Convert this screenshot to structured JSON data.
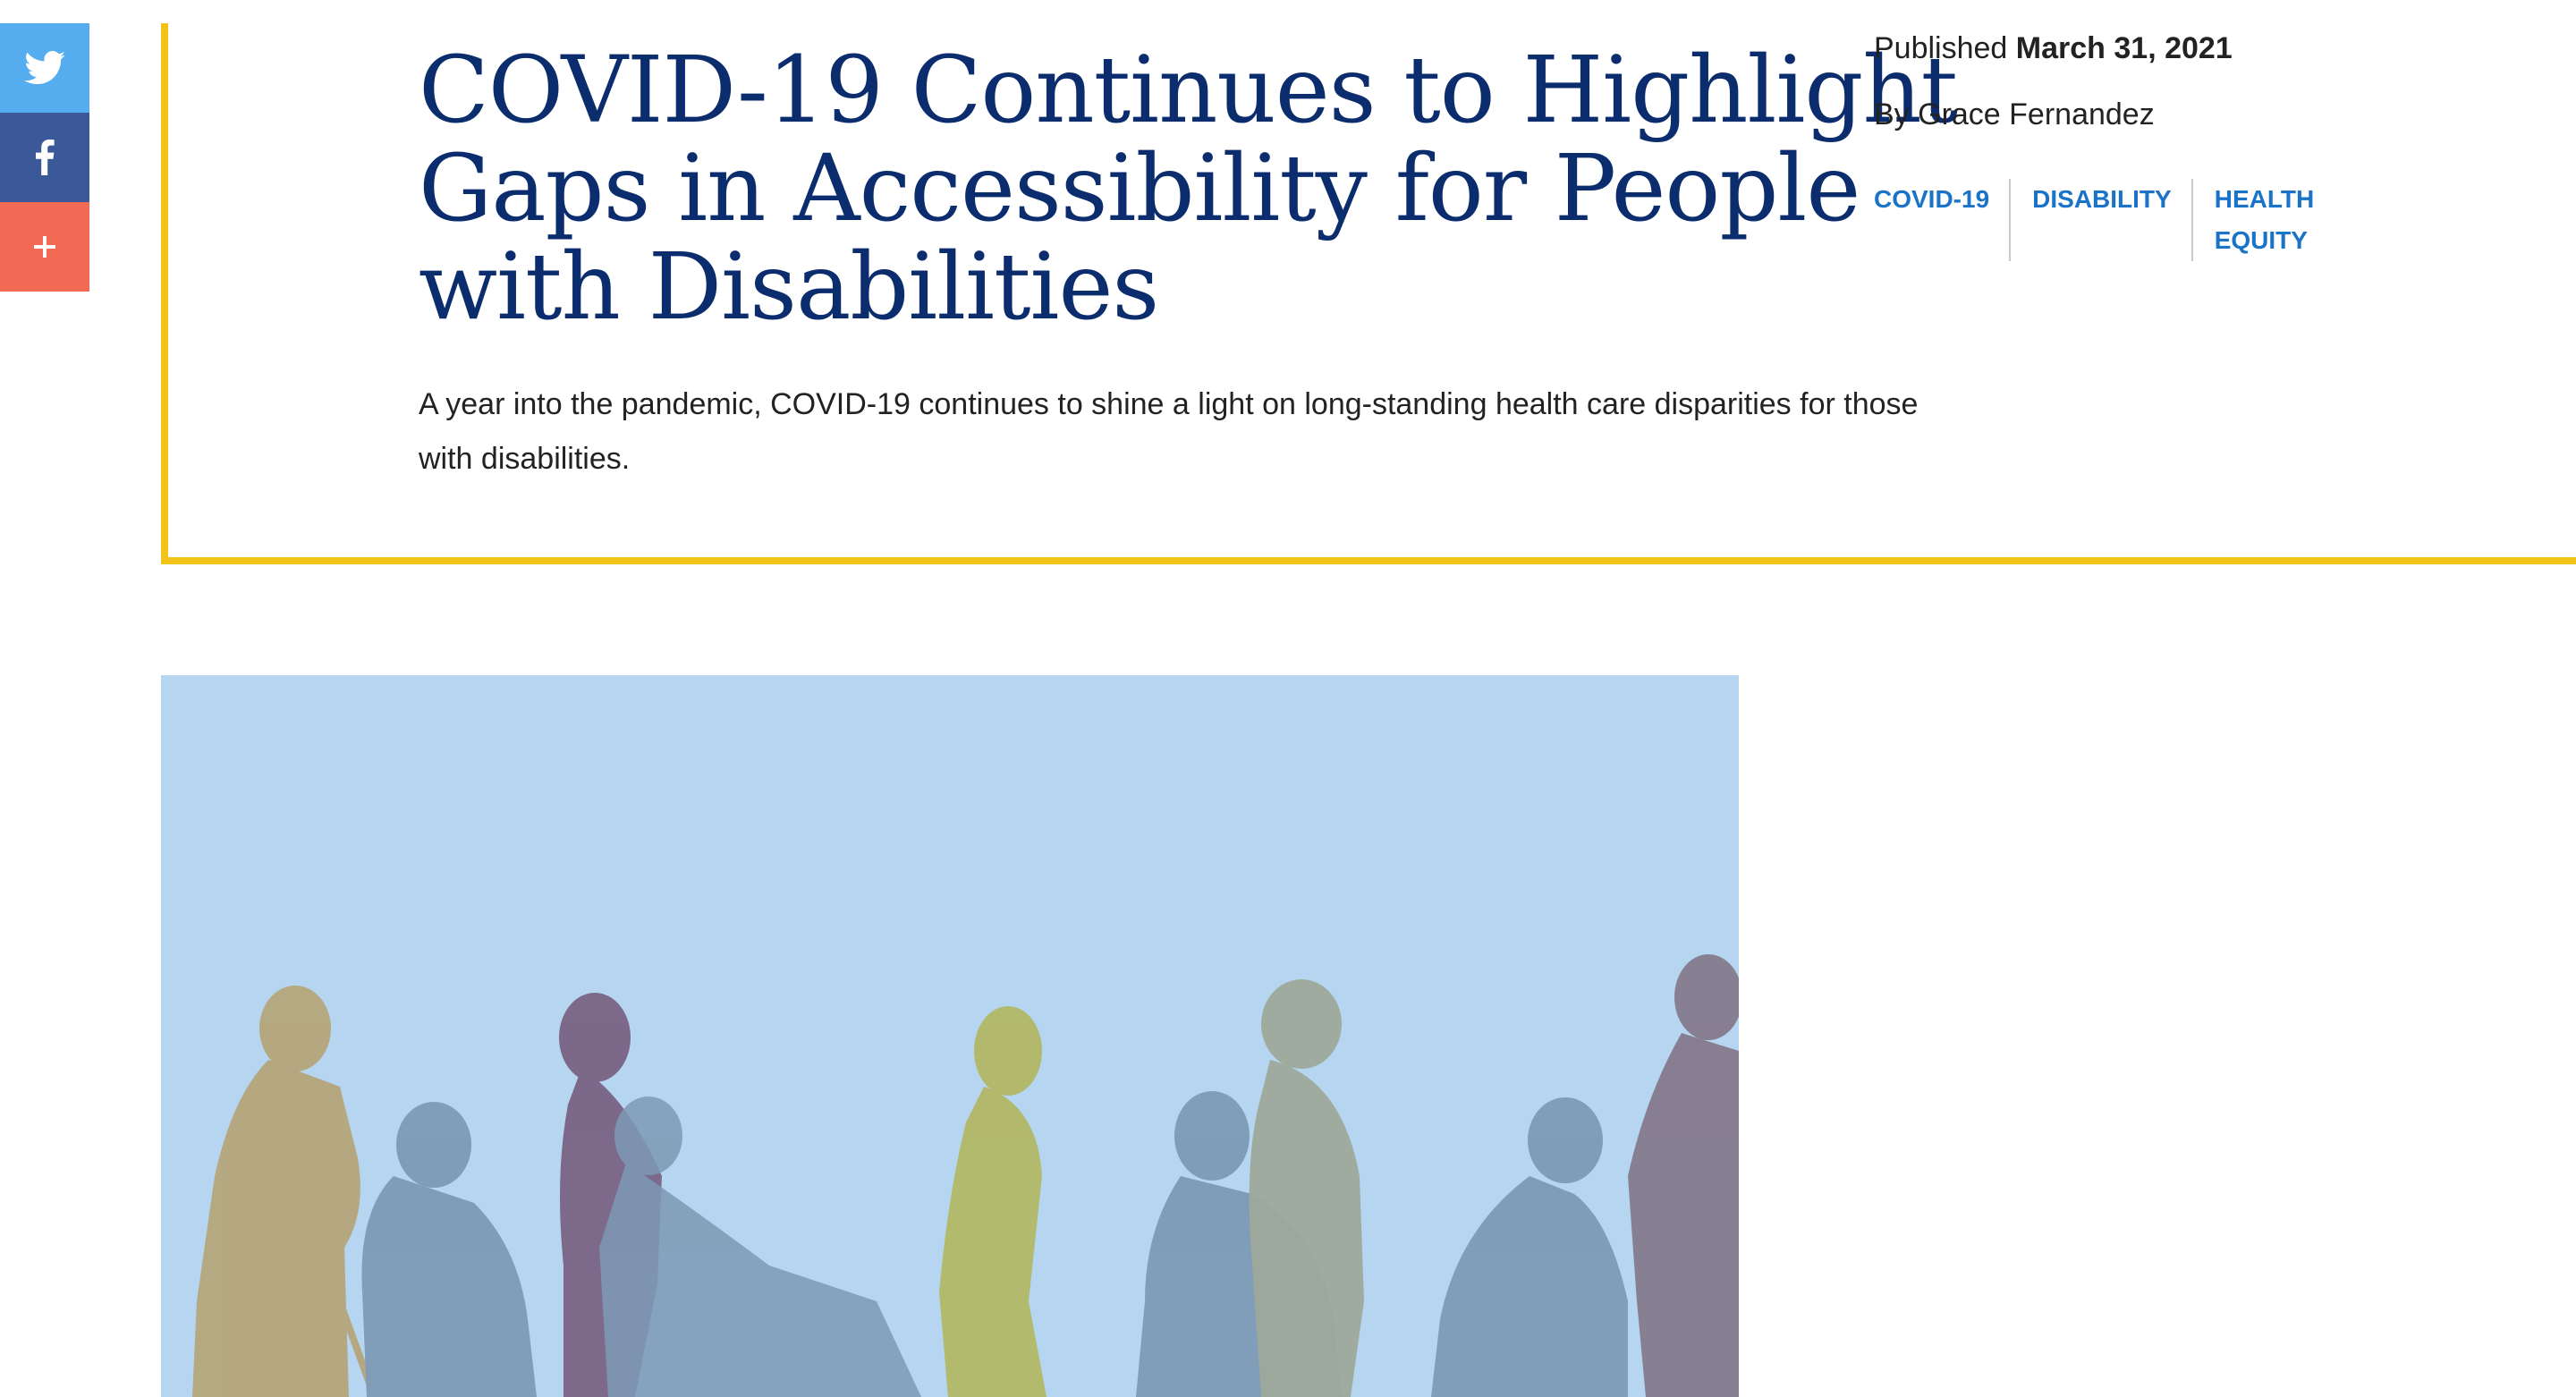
{
  "share": [
    {
      "name": "twitter-share-button",
      "icon": "twitter-icon",
      "color": "#55acee"
    },
    {
      "name": "facebook-share-button",
      "icon": "facebook-icon",
      "color": "#3b5998"
    },
    {
      "name": "more-share-button",
      "icon": "plus-icon",
      "color": "#f26a53"
    }
  ],
  "article": {
    "title": "COVID-19 Continues to Highlight Gaps in Accessibility for People with Disabilities",
    "dek": "A year into the pandemic, COVID-19 continues to shine a light on long-standing health care disparities for those with disabilities.",
    "published_label": "Published",
    "published_date": "March 31, 2021",
    "byline": "By Grace Fernandez",
    "tags": [
      "COVID-19",
      "DISABILITY",
      "HEALTH EQUITY"
    ]
  },
  "colors": {
    "accent": "#f2c318",
    "title": "#0b2d6e",
    "tag": "#1a73c7",
    "hero_bg": "#b5d5f1"
  }
}
